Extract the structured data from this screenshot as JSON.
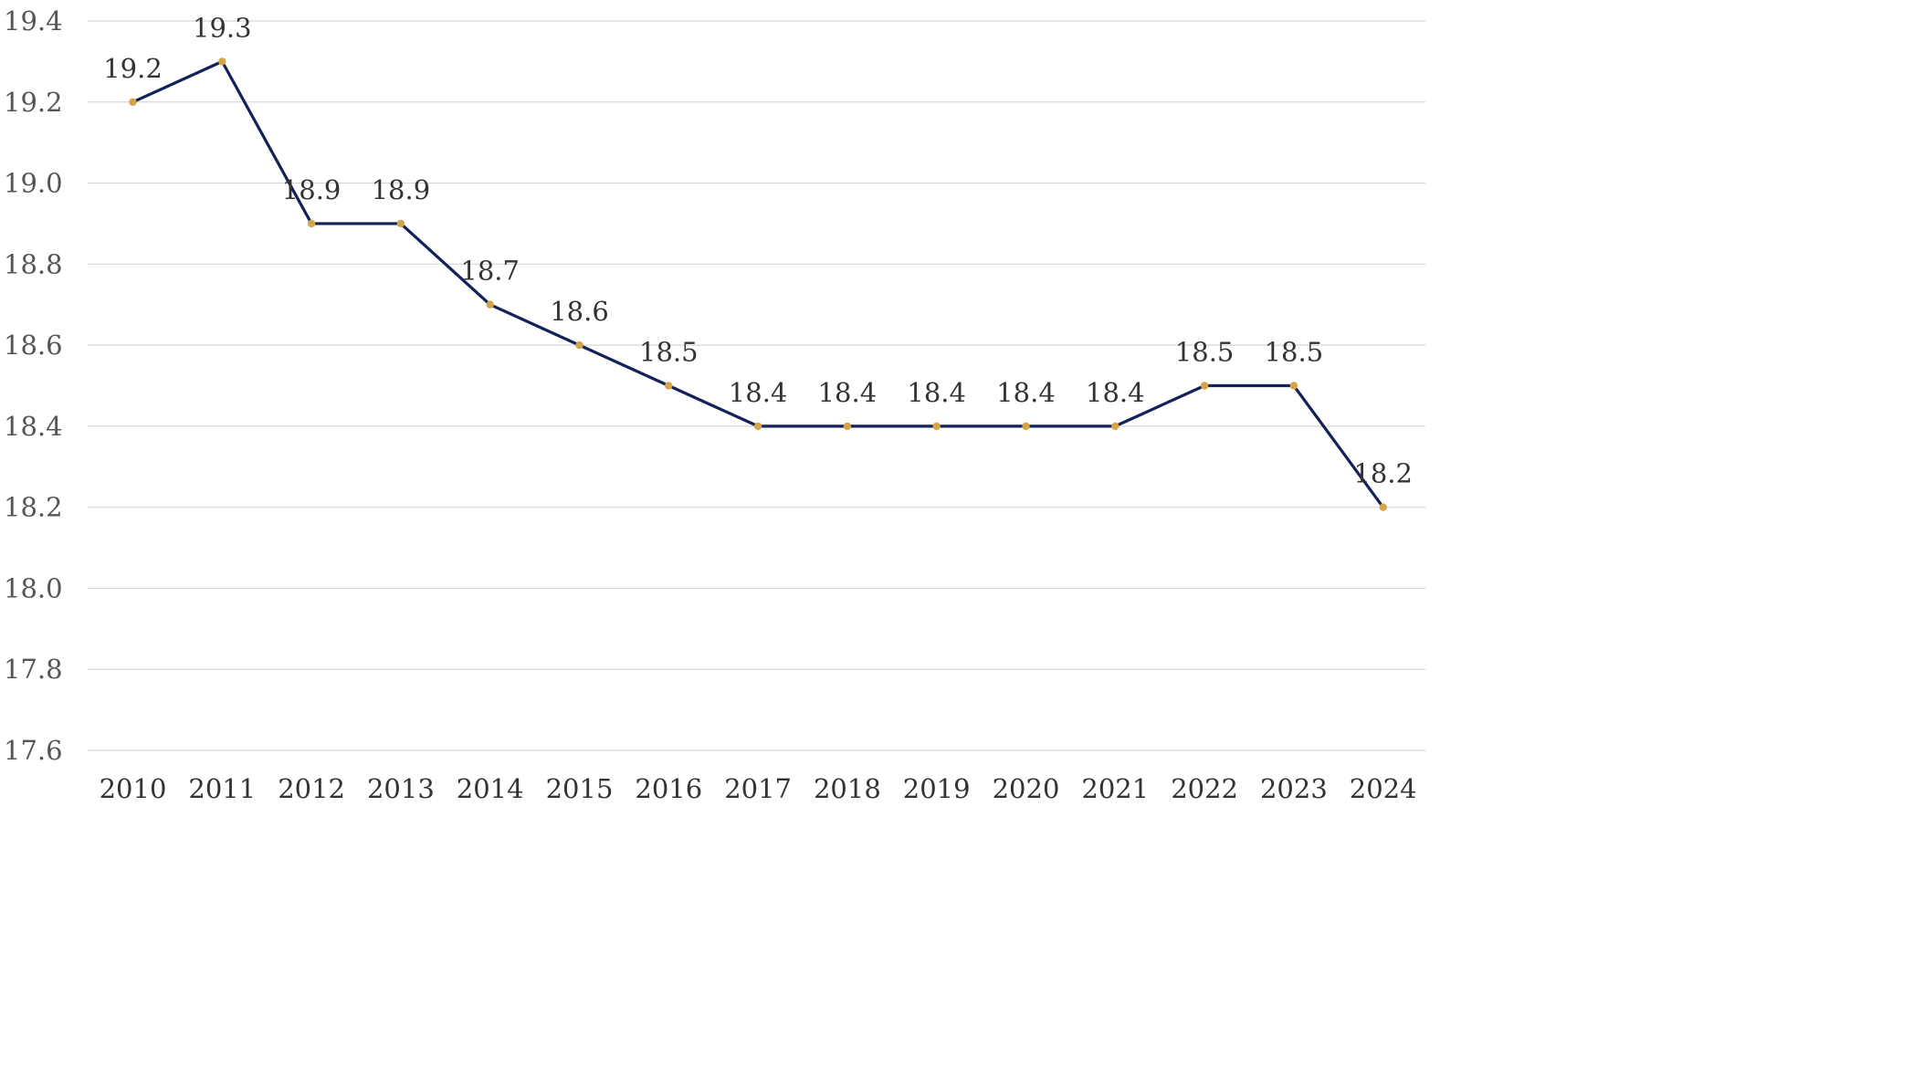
{
  "chart_data": {
    "type": "line",
    "title": "",
    "xlabel": "",
    "ylabel": "",
    "categories": [
      "2010",
      "2011",
      "2012",
      "2013",
      "2014",
      "2015",
      "2016",
      "2017",
      "2018",
      "2019",
      "2020",
      "2021",
      "2022",
      "2023",
      "2024"
    ],
    "series": [
      {
        "values": [
          19.2,
          19.3,
          18.9,
          18.9,
          18.7,
          18.6,
          18.5,
          18.4,
          18.4,
          18.4,
          18.4,
          18.4,
          18.5,
          18.5,
          18.2
        ],
        "data_labels": [
          "19.2",
          "19.3",
          "18.9",
          "18.9",
          "18.7",
          "18.6",
          "18.5",
          "18.4",
          "18.4",
          "18.4",
          "18.4",
          "18.4",
          "18.5",
          "18.5",
          "18.2"
        ],
        "line_color": "#13215a",
        "marker_color": "#d4a547"
      }
    ],
    "ylim": [
      17.6,
      19.4
    ],
    "yticks": [
      "17.6",
      "17.8",
      "18.0",
      "18.2",
      "18.4",
      "18.6",
      "18.8",
      "19.0",
      "19.2",
      "19.4"
    ],
    "grid": true,
    "legend": "none"
  }
}
